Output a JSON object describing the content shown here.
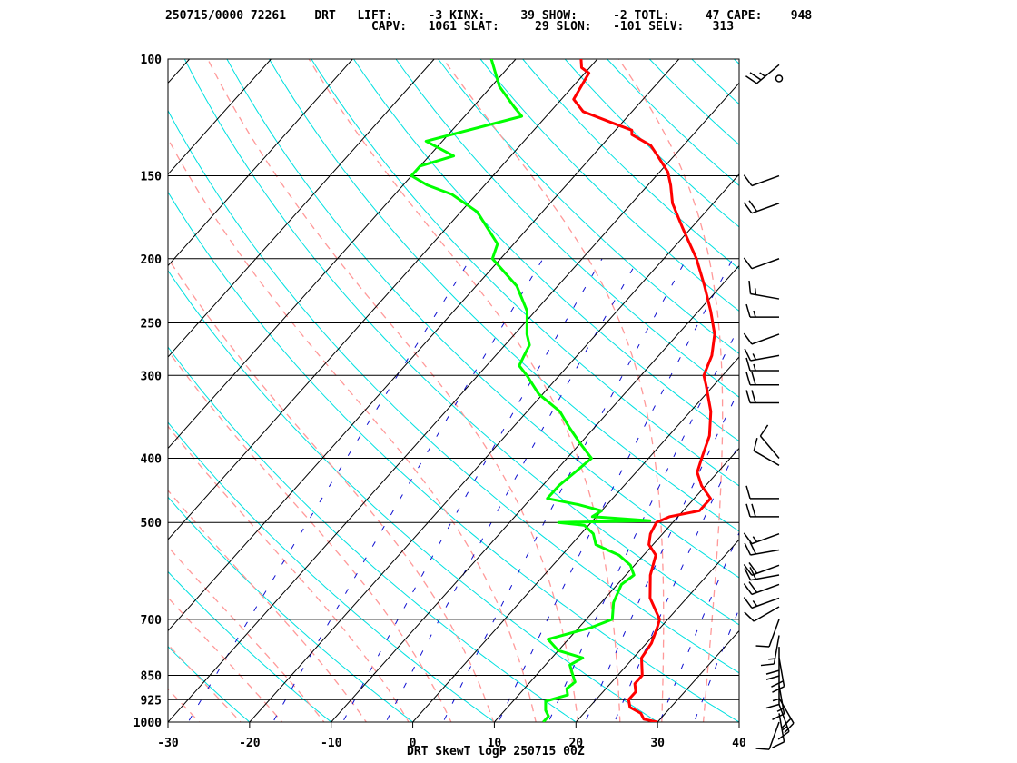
{
  "header": {
    "line1": "250715/0000 72261    DRT   LIFT:     -3 KINX:     39 SHOW:     -2 TOTL:     47 CAPE:    948",
    "line2": "                             CAPV:   1061 SLAT:     29 SLON:   -101 SELV:    313"
  },
  "footer": {
    "label": "DRT SkewT logP 250715 00Z"
  },
  "chart_data": {
    "type": "line",
    "title": "DRT SkewT logP 250715 00Z",
    "xlabel": "",
    "ylabel": "",
    "xlim": [
      -30,
      40
    ],
    "ylim": [
      1000,
      100
    ],
    "y_scale": "log",
    "x_ticks": [
      -30,
      -20,
      -10,
      0,
      10,
      20,
      30,
      40
    ],
    "y_ticks": [
      100,
      150,
      200,
      250,
      300,
      400,
      500,
      700,
      850,
      925,
      1000
    ],
    "grid": true,
    "colors": {
      "temperature": "#ff0000",
      "dewpoint": "#00ff00",
      "isotherm": "#000000",
      "dry_adiabat": "#00e0e0",
      "moist_adiabat": "#ff9999",
      "mixing_ratio": "#1010d0",
      "wind": "#000000"
    },
    "series": [
      {
        "name": "",
        "role": "temperature",
        "color": "#ff0000",
        "points": [
          [
            1000,
            30
          ],
          [
            990,
            28
          ],
          [
            970,
            27
          ],
          [
            950,
            25
          ],
          [
            925,
            24
          ],
          [
            900,
            24
          ],
          [
            875,
            23
          ],
          [
            850,
            23
          ],
          [
            800,
            21
          ],
          [
            760,
            20.6
          ],
          [
            720,
            19.6
          ],
          [
            700,
            19
          ],
          [
            650,
            15.5
          ],
          [
            600,
            13
          ],
          [
            560,
            11.5
          ],
          [
            540,
            9.5
          ],
          [
            520,
            8.5
          ],
          [
            500,
            8
          ],
          [
            490,
            9
          ],
          [
            480,
            12
          ],
          [
            460,
            12
          ],
          [
            440,
            9.5
          ],
          [
            420,
            7.5
          ],
          [
            400,
            6.5
          ],
          [
            370,
            5
          ],
          [
            340,
            2.5
          ],
          [
            310,
            -1
          ],
          [
            300,
            -2.3
          ],
          [
            280,
            -3.5
          ],
          [
            260,
            -5.5
          ],
          [
            240,
            -8.5
          ],
          [
            220,
            -12
          ],
          [
            200,
            -16
          ],
          [
            180,
            -21
          ],
          [
            165,
            -25
          ],
          [
            155,
            -27.2
          ],
          [
            148,
            -29
          ],
          [
            140,
            -32
          ],
          [
            135,
            -34
          ],
          [
            130,
            -37.5
          ],
          [
            128,
            -38
          ],
          [
            125,
            -41
          ],
          [
            120,
            -46
          ],
          [
            115,
            -48.5
          ],
          [
            110,
            -49
          ],
          [
            105,
            -49.5
          ],
          [
            103,
            -51
          ],
          [
            100,
            -52
          ]
        ]
      },
      {
        "name": "",
        "role": "dewpoint",
        "color": "#00ff00",
        "points": [
          [
            1000,
            16
          ],
          [
            980,
            16
          ],
          [
            960,
            15
          ],
          [
            930,
            14
          ],
          [
            910,
            16
          ],
          [
            890,
            15.2
          ],
          [
            870,
            15.5
          ],
          [
            850,
            14.5
          ],
          [
            820,
            13
          ],
          [
            800,
            13.8
          ],
          [
            780,
            10
          ],
          [
            750,
            7.5
          ],
          [
            720,
            11.5
          ],
          [
            700,
            13.2
          ],
          [
            660,
            11.5
          ],
          [
            620,
            10.5
          ],
          [
            600,
            11
          ],
          [
            580,
            9.5
          ],
          [
            560,
            7
          ],
          [
            540,
            3
          ],
          [
            520,
            1.5
          ],
          [
            505,
            -0.5
          ],
          [
            500,
            -4
          ],
          [
            497,
            7
          ],
          [
            490,
            -0.5
          ],
          [
            480,
            0
          ],
          [
            470,
            -3.5
          ],
          [
            460,
            -8
          ],
          [
            440,
            -8
          ],
          [
            420,
            -7.5
          ],
          [
            400,
            -7
          ],
          [
            380,
            -10
          ],
          [
            360,
            -13
          ],
          [
            340,
            -16
          ],
          [
            320,
            -20.5
          ],
          [
            300,
            -24
          ],
          [
            290,
            -26
          ],
          [
            280,
            -26.5
          ],
          [
            270,
            -27
          ],
          [
            260,
            -28.5
          ],
          [
            240,
            -31
          ],
          [
            220,
            -35
          ],
          [
            200,
            -41
          ],
          [
            190,
            -42
          ],
          [
            170,
            -48
          ],
          [
            160,
            -53
          ],
          [
            155,
            -57
          ],
          [
            150,
            -60
          ],
          [
            145,
            -60
          ],
          [
            140,
            -57
          ],
          [
            133,
            -62
          ],
          [
            122,
            -53
          ],
          [
            118,
            -55
          ],
          [
            110,
            -59
          ],
          [
            100,
            -63
          ]
        ]
      }
    ],
    "winds": [
      {
        "p": 1000,
        "dir": 200,
        "spd": 10
      },
      {
        "p": 970,
        "dir": 170,
        "spd": 10
      },
      {
        "p": 940,
        "dir": 160,
        "spd": 15
      },
      {
        "p": 920,
        "dir": 150,
        "spd": 20
      },
      {
        "p": 880,
        "dir": 170,
        "spd": 15
      },
      {
        "p": 850,
        "dir": 180,
        "spd": 15
      },
      {
        "p": 800,
        "dir": 170,
        "spd": 20
      },
      {
        "p": 770,
        "dir": 180,
        "spd": 20
      },
      {
        "p": 740,
        "dir": 190,
        "spd": 15
      },
      {
        "p": 700,
        "dir": 200,
        "spd": 10
      },
      {
        "p": 670,
        "dir": 240,
        "spd": 10
      },
      {
        "p": 650,
        "dir": 250,
        "spd": 15
      },
      {
        "p": 620,
        "dir": 250,
        "spd": 20
      },
      {
        "p": 600,
        "dir": 260,
        "spd": 20
      },
      {
        "p": 580,
        "dir": 250,
        "spd": 20
      },
      {
        "p": 550,
        "dir": 260,
        "spd": 20
      },
      {
        "p": 520,
        "dir": 250,
        "spd": 15
      },
      {
        "p": 490,
        "dir": 270,
        "spd": 20
      },
      {
        "p": 460,
        "dir": 270,
        "spd": 10
      },
      {
        "p": 410,
        "dir": 300,
        "spd": 10
      },
      {
        "p": 400,
        "dir": 320,
        "spd": 10
      },
      {
        "p": 330,
        "dir": 270,
        "spd": 20
      },
      {
        "p": 310,
        "dir": 270,
        "spd": 20
      },
      {
        "p": 295,
        "dir": 270,
        "spd": 15
      },
      {
        "p": 280,
        "dir": 260,
        "spd": 15
      },
      {
        "p": 260,
        "dir": 250,
        "spd": 10
      },
      {
        "p": 245,
        "dir": 270,
        "spd": 15
      },
      {
        "p": 230,
        "dir": 280,
        "spd": 15
      },
      {
        "p": 200,
        "dir": 250,
        "spd": 10
      },
      {
        "p": 165,
        "dir": 250,
        "spd": 20
      },
      {
        "p": 150,
        "dir": 250,
        "spd": 10
      },
      {
        "p": 102,
        "dir": 230,
        "spd": 25
      },
      {
        "p": 107,
        "dir": 0,
        "spd": 0
      }
    ]
  }
}
